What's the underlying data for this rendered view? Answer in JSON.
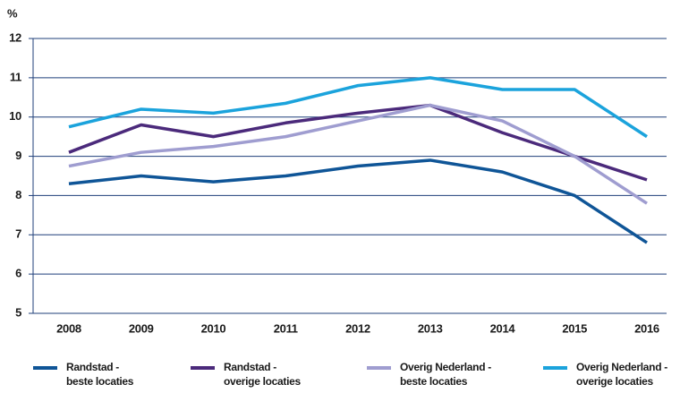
{
  "chart_data": {
    "type": "line",
    "y_unit": "%",
    "categories": [
      "2008",
      "2009",
      "2010",
      "2011",
      "2012",
      "2013",
      "2014",
      "2015",
      "2016"
    ],
    "ylim": [
      5,
      12
    ],
    "yticks": [
      5,
      6,
      7,
      8,
      9,
      10,
      11,
      12
    ],
    "grid": true,
    "series": [
      {
        "name": "Randstad - beste locaties",
        "color": "#0f5597",
        "values": [
          8.3,
          8.5,
          8.35,
          8.5,
          8.75,
          8.9,
          8.6,
          8.0,
          6.8
        ]
      },
      {
        "name": "Randstad - overige locaties",
        "color": "#4b2a7b",
        "values": [
          9.1,
          9.8,
          9.5,
          9.85,
          10.1,
          10.3,
          9.6,
          9.0,
          8.4
        ]
      },
      {
        "name": "Overig Nederland - beste locaties",
        "color": "#9f9dd0",
        "values": [
          8.75,
          9.1,
          9.25,
          9.5,
          9.9,
          10.3,
          9.9,
          9.0,
          7.8
        ]
      },
      {
        "name": "Overig Nederland - overige locaties",
        "color": "#1ba3dc",
        "values": [
          9.75,
          10.2,
          10.1,
          10.35,
          10.8,
          11.0,
          10.7,
          10.7,
          9.5
        ]
      }
    ]
  }
}
